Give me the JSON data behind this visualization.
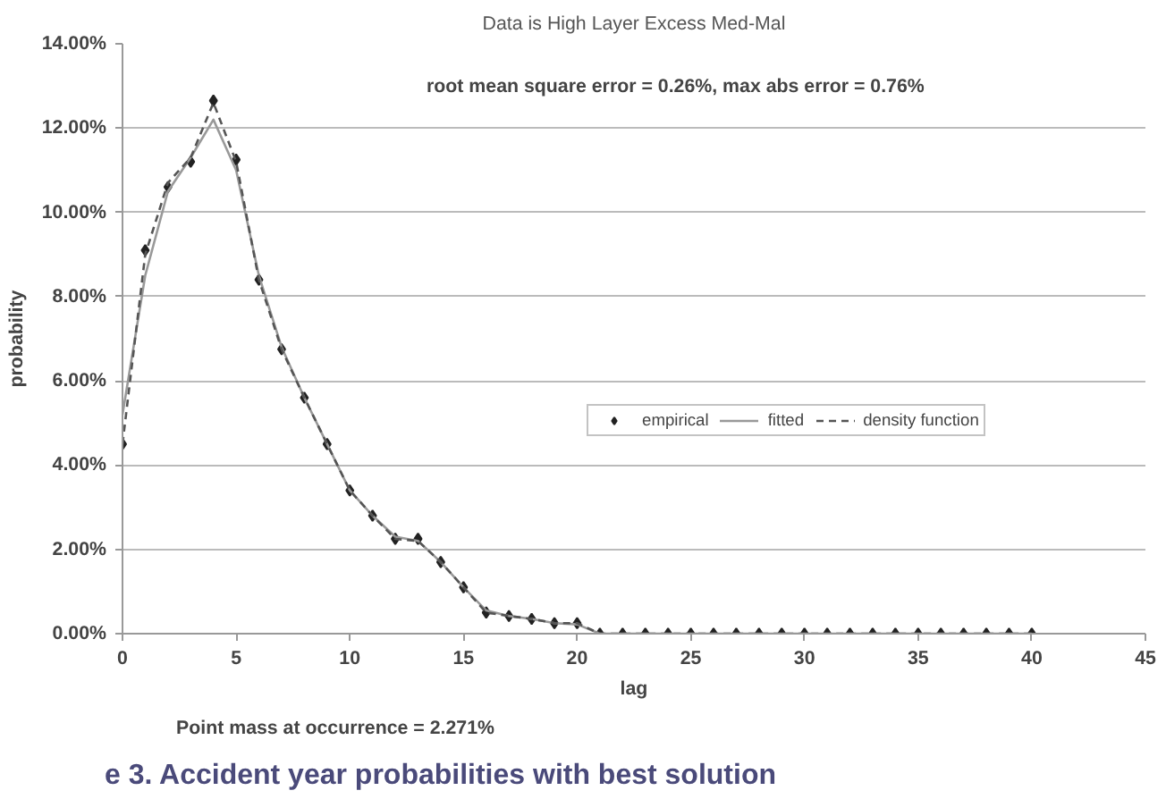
{
  "chart_data": {
    "type": "line",
    "subtitle": "Data is High Layer Excess Med-Mal",
    "xlabel": "lag",
    "ylabel": "probability",
    "annotations": [
      "root mean square error = 0.26%, max abs error = 0.76%",
      "Point mass at occurrence = 2.271%",
      "e 3. Accident year probabilities with best solution"
    ],
    "x": [
      0,
      1,
      2,
      3,
      4,
      5,
      6,
      7,
      8,
      9,
      10,
      11,
      12,
      13,
      14,
      15,
      16,
      17,
      18,
      19,
      20,
      21,
      22,
      23,
      24,
      25,
      26,
      27,
      28,
      29,
      30,
      31,
      32,
      33,
      34,
      35,
      36,
      37,
      38,
      39,
      40
    ],
    "series": [
      {
        "name": "empirical",
        "type": "scatter",
        "marker": "diamond",
        "color": "#222222",
        "values": [
          4.5,
          9.1,
          10.6,
          11.2,
          12.65,
          11.25,
          8.4,
          6.75,
          5.6,
          4.5,
          3.4,
          2.8,
          2.25,
          2.25,
          1.7,
          1.1,
          0.5,
          0.42,
          0.35,
          0.25,
          0.25,
          0,
          0,
          0,
          0,
          0,
          0,
          0,
          0,
          0,
          0,
          0,
          0,
          0,
          0,
          0,
          0,
          0,
          0,
          0,
          0
        ]
      },
      {
        "name": "fitted",
        "line_style": "solid",
        "color": "#999999",
        "values": [
          5.2,
          8.5,
          10.5,
          11.3,
          12.2,
          11.0,
          8.5,
          6.8,
          5.6,
          4.5,
          3.4,
          2.8,
          2.3,
          2.2,
          1.7,
          1.1,
          0.55,
          0.42,
          0.35,
          0.25,
          0.22,
          0,
          0,
          0,
          0,
          0,
          0,
          0,
          0,
          0,
          0,
          0,
          0,
          0,
          0,
          0,
          0,
          0,
          0,
          0,
          0
        ]
      },
      {
        "name": "density function",
        "line_style": "dashed",
        "color": "#555555",
        "values": [
          4.5,
          9.0,
          10.7,
          11.3,
          12.6,
          11.2,
          8.4,
          6.75,
          5.6,
          4.5,
          3.4,
          2.8,
          2.25,
          2.2,
          1.7,
          1.1,
          0.5,
          0.42,
          0.35,
          0.25,
          0.25,
          0,
          0,
          0,
          0,
          0,
          0,
          0,
          0,
          0,
          0,
          0,
          0,
          0,
          0,
          0,
          0,
          0,
          0,
          0,
          0
        ]
      }
    ],
    "xlim": [
      0,
      45
    ],
    "xticks": [
      0,
      5,
      10,
      15,
      20,
      25,
      30,
      35,
      40,
      45
    ],
    "ylim": [
      0,
      14
    ],
    "yticks": [
      {
        "value": 0,
        "label": "0.00%"
      },
      {
        "value": 2,
        "label": "2.00%"
      },
      {
        "value": 4,
        "label": "4.00%"
      },
      {
        "value": 6,
        "label": "6.00%"
      },
      {
        "value": 8,
        "label": "8.00%"
      },
      {
        "value": 10,
        "label": "10.00%"
      },
      {
        "value": 12,
        "label": "12.00%"
      },
      {
        "value": 14,
        "label": "14.00%"
      }
    ],
    "grid": "y",
    "legend": "right"
  }
}
